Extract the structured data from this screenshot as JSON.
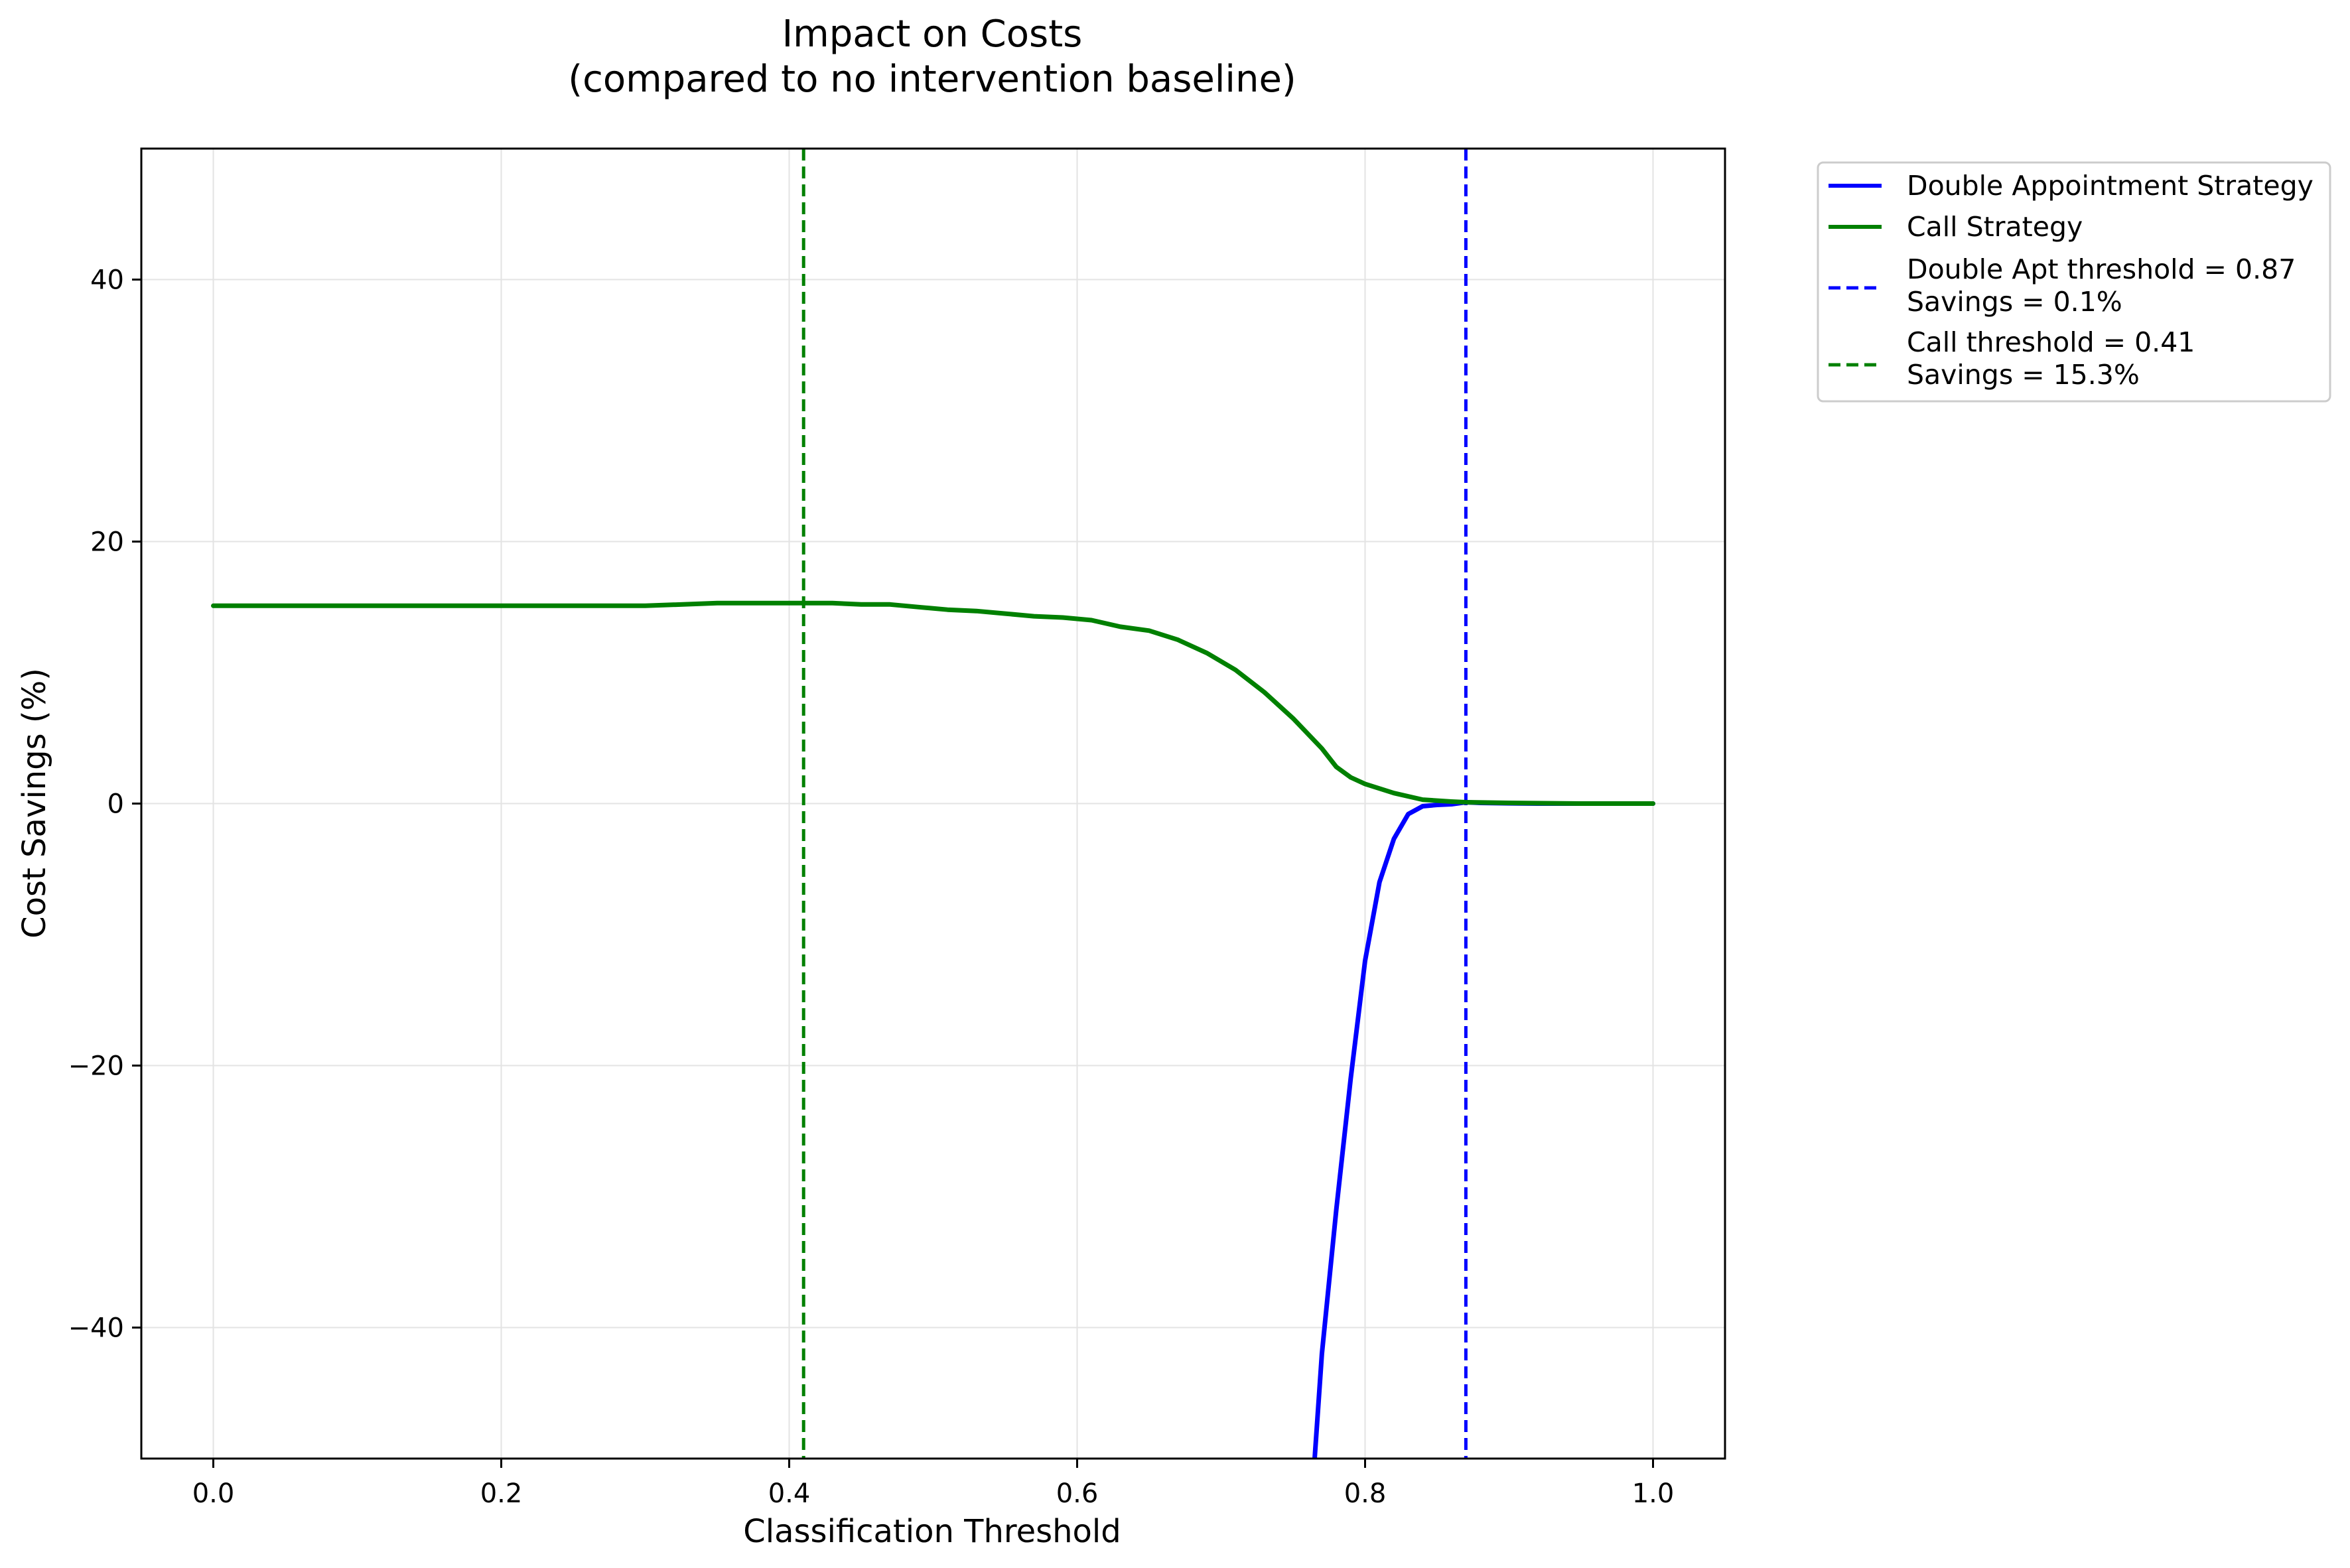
{
  "chart_data": {
    "type": "line",
    "title": [
      "Impact on Costs",
      "(compared to no intervention baseline)"
    ],
    "xlabel": "Classification Threshold",
    "ylabel": "Cost Savings (%)",
    "xlim": [
      -0.05,
      1.05
    ],
    "ylim": [
      -50,
      50
    ],
    "xticks": [
      0.0,
      0.2,
      0.4,
      0.6,
      0.8,
      1.0
    ],
    "xtick_labels": [
      "0.0",
      "0.2",
      "0.4",
      "0.6",
      "0.8",
      "1.0"
    ],
    "yticks": [
      -40,
      -20,
      0,
      20,
      40
    ],
    "ytick_labels": [
      "−40",
      "−20",
      "0",
      "20",
      "40"
    ],
    "grid": true,
    "legend_position": "outside-top-right",
    "series": [
      {
        "name": "Double Appointment Strategy",
        "color": "#0000ff",
        "style": "solid",
        "x": [
          0.765,
          0.77,
          0.78,
          0.79,
          0.8,
          0.81,
          0.82,
          0.83,
          0.84,
          0.85,
          0.86,
          0.87,
          0.88,
          0.9,
          0.92,
          0.95,
          1.0
        ],
        "y": [
          -50,
          -42,
          -31,
          -21,
          -12,
          -6,
          -2.7,
          -0.8,
          -0.2,
          -0.1,
          -0.05,
          0.1,
          0.05,
          0.02,
          0.0,
          0.0,
          0.0
        ]
      },
      {
        "name": "Call Strategy",
        "color": "#008000",
        "style": "solid",
        "x": [
          0.0,
          0.05,
          0.1,
          0.15,
          0.2,
          0.25,
          0.3,
          0.35,
          0.4,
          0.41,
          0.43,
          0.45,
          0.47,
          0.49,
          0.51,
          0.53,
          0.55,
          0.57,
          0.59,
          0.61,
          0.63,
          0.65,
          0.67,
          0.69,
          0.71,
          0.73,
          0.75,
          0.77,
          0.78,
          0.79,
          0.8,
          0.82,
          0.84,
          0.86,
          0.87,
          0.9,
          0.95,
          1.0
        ],
        "y": [
          15.1,
          15.1,
          15.1,
          15.1,
          15.1,
          15.1,
          15.1,
          15.3,
          15.3,
          15.3,
          15.3,
          15.2,
          15.2,
          15.0,
          14.8,
          14.7,
          14.5,
          14.3,
          14.2,
          14.0,
          13.5,
          13.2,
          12.5,
          11.5,
          10.2,
          8.5,
          6.5,
          4.2,
          2.8,
          2.0,
          1.5,
          0.8,
          0.3,
          0.15,
          0.1,
          0.05,
          0.0,
          0.0
        ]
      }
    ],
    "reference_lines": [
      {
        "orientation": "vertical",
        "x": 0.87,
        "color": "#0000ff",
        "style": "dashed",
        "label": [
          "Double Apt threshold = 0.87",
          "Savings = 0.1%"
        ]
      },
      {
        "orientation": "vertical",
        "x": 0.41,
        "color": "#008000",
        "style": "dashed",
        "label": [
          "Call threshold = 0.41",
          "Savings = 15.3%"
        ]
      }
    ]
  }
}
